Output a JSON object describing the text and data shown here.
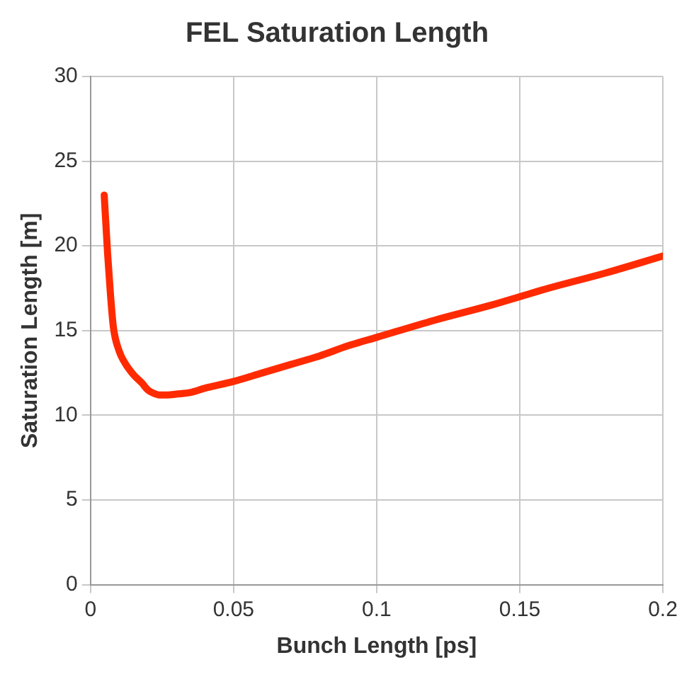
{
  "chart_data": {
    "type": "line",
    "title": "FEL Saturation Length",
    "xlabel": "Bunch Length [ps]",
    "ylabel": "Saturation Length [m]",
    "series": [
      {
        "color": "#ff2a00",
        "x": [
          0.0048,
          0.006,
          0.007,
          0.008,
          0.01,
          0.012,
          0.015,
          0.018,
          0.02,
          0.022,
          0.024,
          0.027,
          0.03,
          0.035,
          0.04,
          0.05,
          0.06,
          0.07,
          0.08,
          0.09,
          0.1,
          0.12,
          0.14,
          0.15,
          0.16,
          0.18,
          0.2
        ],
        "values": [
          23.0,
          19.5,
          17.1,
          15.2,
          13.8,
          13.1,
          12.4,
          11.9,
          11.5,
          11.3,
          11.2,
          11.2,
          11.25,
          11.35,
          11.6,
          12.0,
          12.5,
          13.0,
          13.5,
          14.1,
          14.6,
          15.6,
          16.5,
          17.0,
          17.5,
          18.4,
          19.4
        ]
      }
    ],
    "xlim": [
      0,
      0.2
    ],
    "xticks": [
      0,
      0.05,
      0.1,
      0.15,
      0.2
    ],
    "ylim": [
      0,
      30
    ],
    "yticks": [
      0,
      5,
      10,
      15,
      20,
      25,
      30
    ],
    "grid": true,
    "legend": false,
    "marker": "none",
    "line_style": "solid"
  }
}
